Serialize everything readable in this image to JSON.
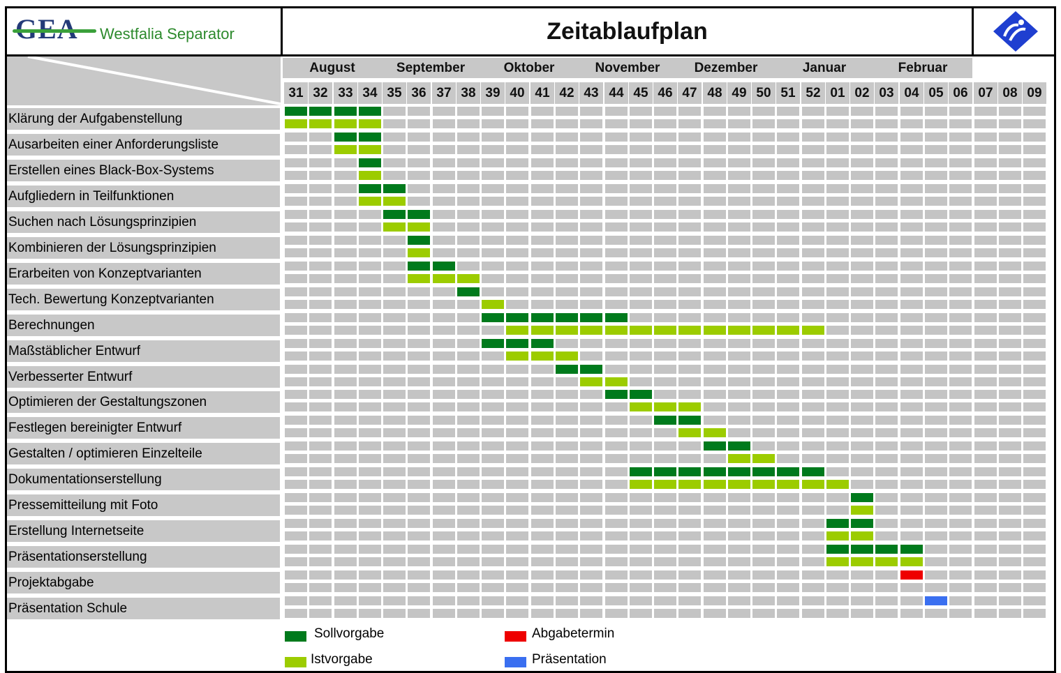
{
  "title": "Zeitablaufplan",
  "logo": {
    "brand": "GEA",
    "company": "Westfalia Separator"
  },
  "colors": {
    "soll": "#007a1c",
    "ist": "#9ccc00",
    "abgabe": "#ee0000",
    "praesentation": "#3a6ff0",
    "cell": "#c4c4c4",
    "header": "#c8c8c8"
  },
  "months": [
    {
      "label": "August",
      "first": 0,
      "count": 4
    },
    {
      "label": "September",
      "first": 4,
      "count": 4
    },
    {
      "label": "Oktober",
      "first": 8,
      "count": 4
    },
    {
      "label": "November",
      "first": 12,
      "count": 4
    },
    {
      "label": "Dezember",
      "first": 16,
      "count": 4
    },
    {
      "label": "Januar",
      "first": 20,
      "count": 4
    },
    {
      "label": "Februar",
      "first": 24,
      "count": 4
    }
  ],
  "weeks": [
    "31",
    "32",
    "33",
    "34",
    "35",
    "36",
    "37",
    "38",
    "39",
    "40",
    "41",
    "42",
    "43",
    "44",
    "45",
    "46",
    "47",
    "48",
    "49",
    "50",
    "51",
    "52",
    "01",
    "02",
    "03",
    "04",
    "05",
    "06",
    "07",
    "08",
    "09"
  ],
  "chart_data": {
    "type": "gantt",
    "title": "Zeitablaufplan",
    "x_unit": "Kalenderwoche",
    "tasks": [
      {
        "name": "Klärung der Aufgabenstellung",
        "soll": [
          "31",
          "32",
          "33",
          "34"
        ],
        "ist": [
          "31",
          "32",
          "33",
          "34"
        ]
      },
      {
        "name": "Ausarbeiten einer Anforderungsliste",
        "soll": [
          "33",
          "34"
        ],
        "ist": [
          "33",
          "34"
        ]
      },
      {
        "name": "Erstellen eines Black-Box-Systems",
        "soll": [
          "34"
        ],
        "ist": [
          "34"
        ]
      },
      {
        "name": "Aufgliedern in Teilfunktionen",
        "soll": [
          "34",
          "35"
        ],
        "ist": [
          "34",
          "35"
        ]
      },
      {
        "name": "Suchen nach Lösungsprinzipien",
        "soll": [
          "35",
          "36"
        ],
        "ist": [
          "35",
          "36"
        ]
      },
      {
        "name": "Kombinieren der Lösungsprinzipien",
        "soll": [
          "36"
        ],
        "ist": [
          "36"
        ]
      },
      {
        "name": "Erarbeiten von Konzeptvarianten",
        "soll": [
          "36",
          "37"
        ],
        "ist": [
          "36",
          "37",
          "38"
        ]
      },
      {
        "name": "Tech. Bewertung Konzeptvarianten",
        "soll": [
          "38"
        ],
        "ist": [
          "39"
        ]
      },
      {
        "name": "Berechnungen",
        "soll": [
          "39",
          "40",
          "41",
          "42",
          "43",
          "44"
        ],
        "ist": [
          "40",
          "41",
          "42",
          "43",
          "44",
          "45",
          "46",
          "47",
          "48",
          "49",
          "50",
          "51",
          "52"
        ]
      },
      {
        "name": "Maßstäblicher Entwurf",
        "soll": [
          "39",
          "40",
          "41"
        ],
        "ist": [
          "40",
          "41",
          "42"
        ]
      },
      {
        "name": "Verbesserter Entwurf",
        "soll": [
          "42",
          "43"
        ],
        "ist": [
          "43",
          "44"
        ]
      },
      {
        "name": "Optimieren der Gestaltungszonen",
        "soll": [
          "44",
          "45"
        ],
        "ist": [
          "45",
          "46",
          "47"
        ]
      },
      {
        "name": "Festlegen bereinigter Entwurf",
        "soll": [
          "46",
          "47"
        ],
        "ist": [
          "47",
          "48"
        ]
      },
      {
        "name": "Gestalten / optimieren Einzelteile",
        "soll": [
          "48",
          "49"
        ],
        "ist": [
          "49",
          "50"
        ]
      },
      {
        "name": "Dokumentationserstellung",
        "soll": [
          "45",
          "46",
          "47",
          "48",
          "49",
          "50",
          "51",
          "52"
        ],
        "ist": [
          "45",
          "46",
          "47",
          "48",
          "49",
          "50",
          "51",
          "52",
          "01"
        ]
      },
      {
        "name": "Pressemitteilung mit Foto",
        "soll": [
          "02"
        ],
        "ist": [
          "02"
        ]
      },
      {
        "name": "Erstellung Internetseite",
        "soll": [
          "01",
          "02"
        ],
        "ist": [
          "01",
          "02"
        ]
      },
      {
        "name": "Präsentationserstellung",
        "soll": [
          "01",
          "02",
          "03",
          "04"
        ],
        "ist": [
          "01",
          "02",
          "03",
          "04"
        ]
      },
      {
        "name": "Projektabgabe",
        "abgabe": [
          "04"
        ]
      },
      {
        "name": "Präsentation Schule",
        "praesentation": [
          "05"
        ]
      }
    ],
    "legend": [
      {
        "key": "soll",
        "label": "Sollvorgabe"
      },
      {
        "key": "abgabe",
        "label": "Abgabetermin"
      },
      {
        "key": "ist",
        "label": "Istvorgabe"
      },
      {
        "key": "praesentation",
        "label": "Präsentation"
      }
    ]
  }
}
